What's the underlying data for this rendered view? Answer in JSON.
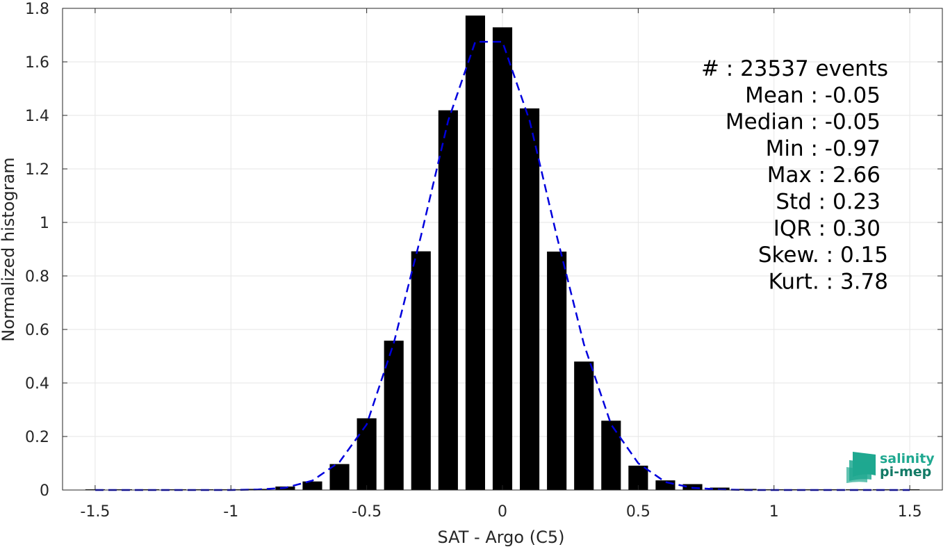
{
  "chart_data": {
    "type": "bar",
    "xlabel": "SAT - Argo (C5)",
    "ylabel": "Normalized histogram",
    "xlim": [
      -1.62,
      1.62
    ],
    "ylim": [
      0,
      1.8
    ],
    "xticks": [
      -1.5,
      -1,
      -0.5,
      0,
      0.5,
      1,
      1.5
    ],
    "xtick_labels": [
      "-1.5",
      "-1",
      "-0.5",
      "0",
      "0.5",
      "1",
      "1.5"
    ],
    "yticks": [
      0,
      0.2,
      0.4,
      0.6,
      0.8,
      1,
      1.2,
      1.4,
      1.6,
      1.8
    ],
    "ytick_labels": [
      "0",
      "0.2",
      "0.4",
      "0.6",
      "0.8",
      "1",
      "1.2",
      "1.4",
      "1.6",
      "1.8"
    ],
    "grid": true,
    "bar_color": "#000000",
    "bar_width": 0.072,
    "series": [
      {
        "type": "bar",
        "x": [
          -1.5,
          -1.4,
          -1.3,
          -1.2,
          -1.1,
          -1.0,
          -0.9,
          -0.8,
          -0.7,
          -0.6,
          -0.5,
          -0.4,
          -0.3,
          -0.2,
          -0.1,
          0.0,
          0.1,
          0.2,
          0.3,
          0.4,
          0.5,
          0.6,
          0.7,
          0.8,
          0.9,
          1.0,
          1.1,
          1.2,
          1.3,
          1.4,
          1.5
        ],
        "values": [
          0,
          0,
          0,
          0,
          0,
          0.002,
          0.004,
          0.013,
          0.032,
          0.097,
          0.268,
          0.558,
          0.892,
          1.419,
          1.773,
          1.729,
          1.426,
          0.891,
          0.48,
          0.259,
          0.091,
          0.036,
          0.022,
          0.009,
          0.004,
          0.002,
          0.001,
          0.001,
          0.001,
          0.001,
          0.001
        ]
      },
      {
        "type": "line",
        "style": "dashed",
        "color": "#0000dd",
        "x": [
          -1.5,
          -1.4,
          -1.3,
          -1.2,
          -1.1,
          -1.0,
          -0.9,
          -0.8,
          -0.7,
          -0.6,
          -0.5,
          -0.4,
          -0.3,
          -0.2,
          -0.1,
          0.0,
          0.1,
          0.2,
          0.3,
          0.4,
          0.5,
          0.6,
          0.7,
          0.8,
          0.9,
          1.0,
          1.1,
          1.2,
          1.3,
          1.4,
          1.5
        ],
        "values": [
          0,
          0,
          0,
          0,
          0,
          0,
          0.002,
          0.008,
          0.035,
          0.105,
          0.245,
          0.55,
          0.95,
          1.38,
          1.675,
          1.675,
          1.38,
          0.95,
          0.545,
          0.245,
          0.1,
          0.03,
          0.008,
          0.002,
          0,
          0,
          0,
          0,
          0,
          0,
          0
        ]
      }
    ],
    "annotations": [
      "#  : 23537 events",
      "Mean : -0.05",
      "Median : -0.05",
      "Min : -0.97",
      "Max : 2.66",
      "Std : 0.23",
      "IQR : 0.30",
      "Skew. : 0.15",
      "Kurt. : 3.78"
    ]
  },
  "logo": {
    "line1": "salinity",
    "line2": "pi-mep",
    "color": "#1fa890",
    "color_dark": "#127a66"
  }
}
